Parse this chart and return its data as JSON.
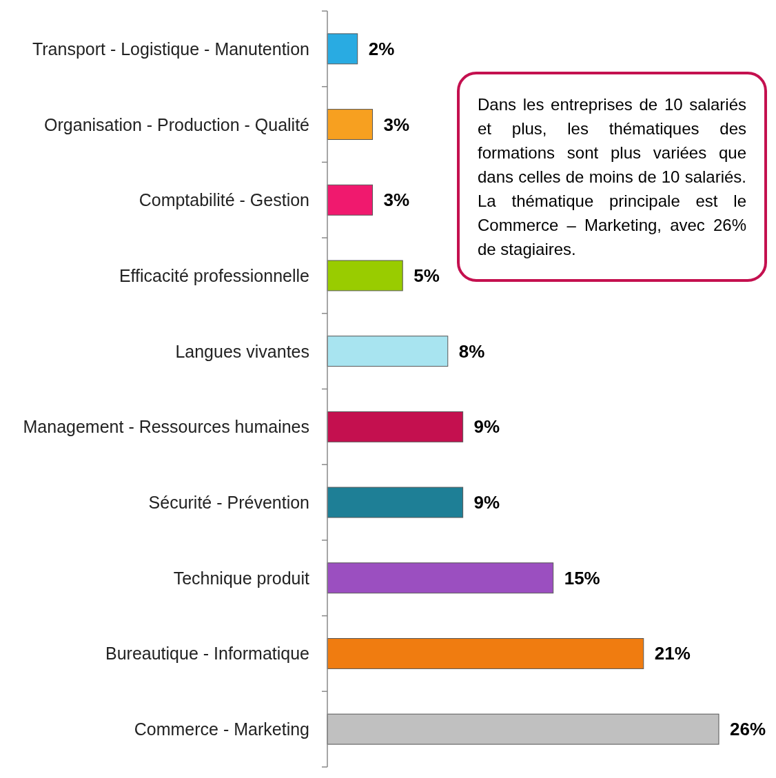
{
  "chart_data": {
    "type": "bar",
    "orientation": "horizontal",
    "categories": [
      "Transport - Logistique - Manutention",
      "Organisation - Production - Qualité",
      "Comptabilité - Gestion",
      "Efficacité professionnelle",
      "Langues vivantes",
      "Management - Ressources humaines",
      "Sécurité - Prévention",
      "Technique produit",
      "Bureautique - Informatique",
      "Commerce - Marketing"
    ],
    "values": [
      2,
      3,
      3,
      5,
      8,
      9,
      9,
      15,
      21,
      26
    ],
    "colors": [
      "#29abe2",
      "#f7a020",
      "#f0196e",
      "#99cc00",
      "#a8e4f0",
      "#c4104f",
      "#1e7f96",
      "#9b4fc0",
      "#f07c10",
      "#c0c0c0"
    ],
    "value_labels": [
      "2%",
      "3%",
      "3%",
      "5%",
      "8%",
      "9%",
      "9%",
      "15%",
      "21%",
      "26%"
    ],
    "annotations": [
      "Dans les entreprises de 10 salariés et plus, les thématiques des formations sont plus variées que dans celles de moins de 10 salariés. La thématique principale est le Commerce – Marketing, avec 26% de stagiaires."
    ]
  }
}
